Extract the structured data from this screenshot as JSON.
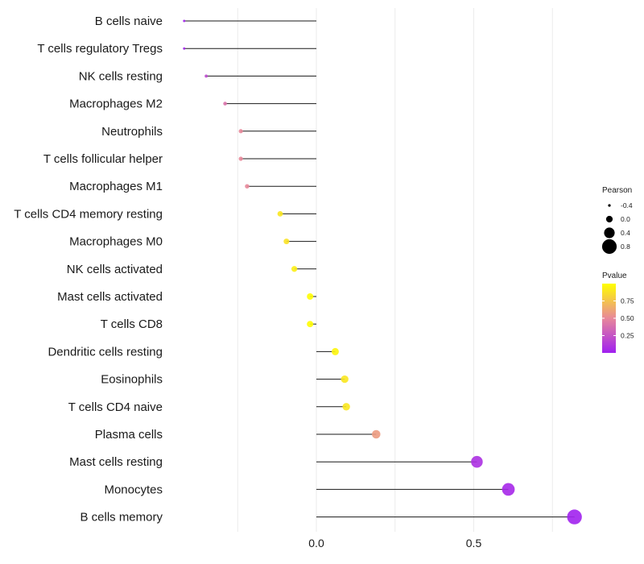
{
  "chart_data": {
    "type": "lollipop",
    "title": "",
    "xlabel": "",
    "ylabel": "",
    "xlim": [
      -0.47,
      0.85
    ],
    "x_ticks": [
      0.0,
      0.5
    ],
    "x_tick_labels": [
      "0.0",
      "0.5"
    ],
    "grid": true,
    "categories": [
      "B cells naive",
      "T cells regulatory  Tregs",
      "NK cells resting",
      "Macrophages M2",
      "Neutrophils",
      "T cells follicular helper",
      "Macrophages M1",
      "T cells CD4 memory resting",
      "Macrophages M0",
      "NK cells activated",
      "Mast cells activated",
      "T cells CD8",
      "Dendritic cells resting",
      "Eosinophils",
      "T cells CD4 naive",
      "Plasma cells",
      "Mast cells resting",
      "Monocytes",
      "B cells memory"
    ],
    "pearson": [
      -0.42,
      -0.42,
      -0.35,
      -0.29,
      -0.24,
      -0.24,
      -0.22,
      -0.115,
      -0.095,
      -0.07,
      -0.02,
      -0.02,
      0.06,
      0.09,
      0.095,
      0.19,
      0.51,
      0.61,
      0.82
    ],
    "pvalue": [
      0.02,
      0.03,
      0.2,
      0.4,
      0.5,
      0.5,
      0.5,
      0.9,
      0.88,
      0.93,
      0.99,
      0.99,
      0.96,
      0.9,
      0.9,
      0.58,
      0.08,
      0.04,
      0.01
    ],
    "legend_size": {
      "title": "Pearson",
      "values": [
        -0.4,
        0.0,
        0.4,
        0.8
      ],
      "labels": [
        "-0.4",
        "0.0",
        "0.4",
        "0.8"
      ]
    },
    "legend_color": {
      "title": "Pvalue",
      "ticks": [
        0.75,
        0.5,
        0.25
      ],
      "tick_labels": [
        "0.75",
        "0.50",
        "0.25"
      ],
      "range": [
        0.0,
        1.0
      ],
      "low_color": "#a020f0",
      "mid_color": "#e8889a",
      "high_color": "#ffff00"
    }
  }
}
